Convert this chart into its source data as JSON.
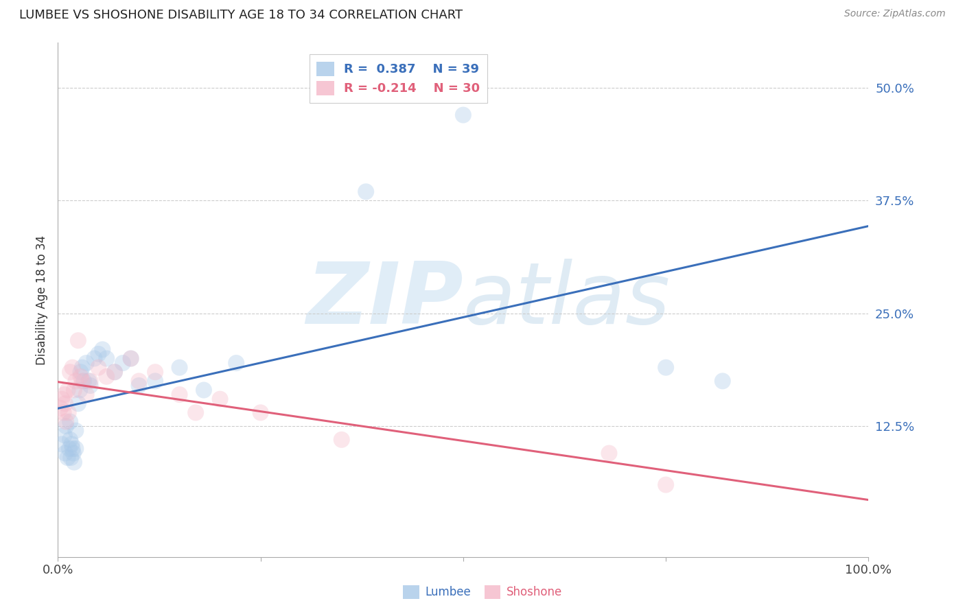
{
  "title": "LUMBEE VS SHOSHONE DISABILITY AGE 18 TO 34 CORRELATION CHART",
  "source": "Source: ZipAtlas.com",
  "ylabel": "Disability Age 18 to 34",
  "lumbee_R": 0.387,
  "lumbee_N": 39,
  "shoshone_R": -0.214,
  "shoshone_N": 30,
  "lumbee_color": "#a8c8e8",
  "shoshone_color": "#f4b8c8",
  "lumbee_line_color": "#3a6fba",
  "shoshone_line_color": "#e0607a",
  "watermark_zip": "ZIP",
  "watermark_atlas": "atlas",
  "xlim": [
    0.0,
    1.0
  ],
  "ylim": [
    -0.02,
    0.55
  ],
  "x_ticks": [
    0.0,
    0.25,
    0.5,
    0.75,
    1.0
  ],
  "x_tick_labels": [
    "0.0%",
    "",
    "",
    "",
    "100.0%"
  ],
  "y_ticks": [
    0.125,
    0.25,
    0.375,
    0.5
  ],
  "y_tick_labels": [
    "12.5%",
    "25.0%",
    "37.5%",
    "50.0%"
  ],
  "lumbee_x": [
    0.005,
    0.008,
    0.009,
    0.01,
    0.012,
    0.014,
    0.015,
    0.015,
    0.016,
    0.017,
    0.018,
    0.019,
    0.02,
    0.022,
    0.022,
    0.025,
    0.027,
    0.028,
    0.03,
    0.032,
    0.035,
    0.038,
    0.04,
    0.045,
    0.05,
    0.055,
    0.06,
    0.07,
    0.08,
    0.09,
    0.1,
    0.12,
    0.15,
    0.18,
    0.22,
    0.38,
    0.5,
    0.75,
    0.82
  ],
  "lumbee_y": [
    0.105,
    0.115,
    0.095,
    0.125,
    0.09,
    0.1,
    0.11,
    0.13,
    0.09,
    0.105,
    0.1,
    0.095,
    0.085,
    0.12,
    0.1,
    0.15,
    0.165,
    0.185,
    0.19,
    0.175,
    0.195,
    0.175,
    0.17,
    0.2,
    0.205,
    0.21,
    0.2,
    0.185,
    0.195,
    0.2,
    0.17,
    0.175,
    0.19,
    0.165,
    0.195,
    0.385,
    0.47,
    0.19,
    0.175
  ],
  "shoshone_x": [
    0.003,
    0.005,
    0.007,
    0.008,
    0.009,
    0.01,
    0.012,
    0.013,
    0.015,
    0.018,
    0.02,
    0.022,
    0.025,
    0.028,
    0.03,
    0.035,
    0.04,
    0.05,
    0.06,
    0.07,
    0.09,
    0.1,
    0.12,
    0.15,
    0.17,
    0.2,
    0.25,
    0.35,
    0.68,
    0.75
  ],
  "shoshone_y": [
    0.145,
    0.155,
    0.14,
    0.16,
    0.15,
    0.13,
    0.165,
    0.14,
    0.185,
    0.19,
    0.165,
    0.175,
    0.22,
    0.18,
    0.175,
    0.16,
    0.175,
    0.19,
    0.18,
    0.185,
    0.2,
    0.175,
    0.185,
    0.16,
    0.14,
    0.155,
    0.14,
    0.11,
    0.095,
    0.06
  ],
  "background_color": "#ffffff",
  "grid_color": "#cccccc",
  "marker_size": 300,
  "marker_alpha": 0.35,
  "line_width": 2.2
}
